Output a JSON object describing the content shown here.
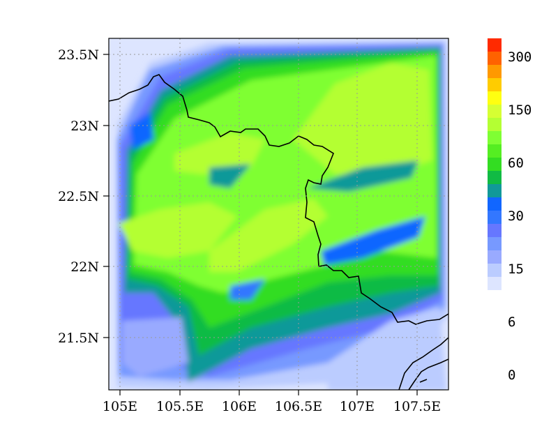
{
  "map": {
    "lat_ticks": [
      "23.5N",
      "23N",
      "22.5N",
      "22N",
      "21.5N"
    ],
    "lon_ticks": [
      "105E",
      "105.5E",
      "106E",
      "106.5E",
      "107E",
      "107.5E"
    ],
    "grid": "dotted"
  },
  "colorbar": {
    "labels": [
      "300",
      "150",
      "60",
      "30",
      "15",
      "6",
      "0"
    ],
    "colors": [
      "#ff2a00",
      "#ff6200",
      "#ff9900",
      "#ffcc00",
      "#ffff11",
      "#d6ff33",
      "#b4ff33",
      "#7fff33",
      "#55ee22",
      "#33dd22",
      "#11bb44",
      "#119999",
      "#1166ff",
      "#3377ff",
      "#6677ff",
      "#7799ff",
      "#99aaff",
      "#bbccff",
      "#dde5ff"
    ]
  }
}
